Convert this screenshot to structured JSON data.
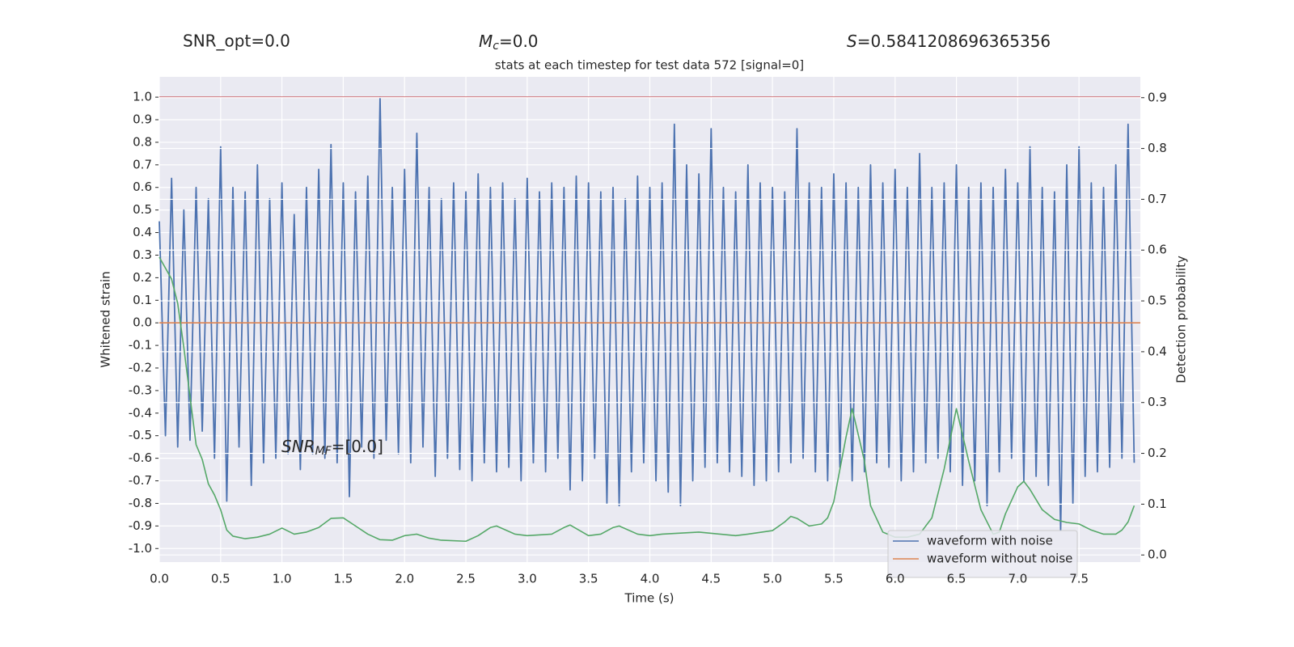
{
  "chart_data": {
    "type": "line",
    "title": "stats at each timestep for test data 572 [signal=0]",
    "x_label": "Time (s)",
    "y_label": "Whitened strain",
    "y2_label": "Detection probability",
    "annotations": [
      {
        "text": "SNR_opt=0.0"
      },
      {
        "symbol": "M",
        "sub": "c",
        "text": "=0.0"
      },
      {
        "symbol": "S",
        "text": "=0.5841208696365356"
      },
      {
        "symbol": "SNR",
        "sub": "MF",
        "text": "=[0.0]"
      }
    ],
    "xlim": [
      0,
      8.0
    ],
    "ylim": [
      -1.06,
      1.09
    ],
    "y2lim": [
      -0.014,
      0.941
    ],
    "grid": true,
    "background": "#eaeaf2",
    "legend_position": "lower right",
    "hline": {
      "value": 1.0,
      "color": "#c44e52"
    },
    "xticks": [
      {
        "value": 0,
        "label": "0.0"
      },
      {
        "value": 0.5,
        "label": "0.5"
      },
      {
        "value": 1,
        "label": "1.0"
      },
      {
        "value": 1.5,
        "label": "1.5"
      },
      {
        "value": 2,
        "label": "2.0"
      },
      {
        "value": 2.5,
        "label": "2.5"
      },
      {
        "value": 3,
        "label": "3.0"
      },
      {
        "value": 3.5,
        "label": "3.5"
      },
      {
        "value": 4,
        "label": "4.0"
      },
      {
        "value": 4.5,
        "label": "4.5"
      },
      {
        "value": 5,
        "label": "5.0"
      },
      {
        "value": 5.5,
        "label": "5.5"
      },
      {
        "value": 6,
        "label": "6.0"
      },
      {
        "value": 6.5,
        "label": "6.5"
      },
      {
        "value": 7,
        "label": "7.0"
      },
      {
        "value": 7.5,
        "label": "7.5"
      }
    ],
    "yticks": [
      {
        "value": -1,
        "label": "-1.0"
      },
      {
        "value": -0.9,
        "label": "-0.9"
      },
      {
        "value": -0.8,
        "label": "-0.8"
      },
      {
        "value": -0.7,
        "label": "-0.7"
      },
      {
        "value": -0.6,
        "label": "-0.6"
      },
      {
        "value": -0.5,
        "label": "-0.5"
      },
      {
        "value": -0.4,
        "label": "-0.4"
      },
      {
        "value": -0.3,
        "label": "-0.3"
      },
      {
        "value": -0.2,
        "label": "-0.2"
      },
      {
        "value": -0.1,
        "label": "-0.1"
      },
      {
        "value": 0,
        "label": "0.0"
      },
      {
        "value": 0.1,
        "label": "0.1"
      },
      {
        "value": 0.2,
        "label": "0.2"
      },
      {
        "value": 0.3,
        "label": "0.3"
      },
      {
        "value": 0.4,
        "label": "0.4"
      },
      {
        "value": 0.5,
        "label": "0.5"
      },
      {
        "value": 0.6,
        "label": "0.6"
      },
      {
        "value": 0.7,
        "label": "0.7"
      },
      {
        "value": 0.8,
        "label": "0.8"
      },
      {
        "value": 0.9,
        "label": "0.9"
      },
      {
        "value": 1,
        "label": "1.0"
      }
    ],
    "y2ticks": [
      {
        "value": 0,
        "label": "0.0"
      },
      {
        "value": 0.1,
        "label": "0.1"
      },
      {
        "value": 0.2,
        "label": "0.2"
      },
      {
        "value": 0.3,
        "label": "0.3"
      },
      {
        "value": 0.4,
        "label": "0.4"
      },
      {
        "value": 0.5,
        "label": "0.5"
      },
      {
        "value": 0.6,
        "label": "0.6"
      },
      {
        "value": 0.7,
        "label": "0.7"
      },
      {
        "value": 0.8,
        "label": "0.8"
      },
      {
        "value": 0.9,
        "label": "0.9"
      }
    ],
    "series": [
      {
        "name": "waveform with noise",
        "color": "#4c72b0",
        "x": [
          0,
          0.05,
          0.1,
          0.15,
          0.2,
          0.25,
          0.3,
          0.35,
          0.4,
          0.45,
          0.5,
          0.55,
          0.6,
          0.65,
          0.7,
          0.75,
          0.8,
          0.85,
          0.9,
          0.95,
          1,
          1.05,
          1.1,
          1.15,
          1.2,
          1.25,
          1.3,
          1.35,
          1.4,
          1.45,
          1.5,
          1.55,
          1.6,
          1.65,
          1.7,
          1.75,
          1.8,
          1.85,
          1.9,
          1.95,
          2,
          2.05,
          2.1,
          2.15,
          2.2,
          2.25,
          2.3,
          2.35,
          2.4,
          2.45,
          2.5,
          2.55,
          2.6,
          2.65,
          2.7,
          2.75,
          2.8,
          2.85,
          2.9,
          2.95,
          3,
          3.05,
          3.1,
          3.15,
          3.2,
          3.25,
          3.3,
          3.35,
          3.4,
          3.45,
          3.5,
          3.55,
          3.6,
          3.65,
          3.7,
          3.75,
          3.8,
          3.85,
          3.9,
          3.95,
          4,
          4.05,
          4.1,
          4.15,
          4.2,
          4.25,
          4.3,
          4.35,
          4.4,
          4.45,
          4.5,
          4.55,
          4.6,
          4.65,
          4.7,
          4.75,
          4.8,
          4.85,
          4.9,
          4.95,
          5,
          5.05,
          5.1,
          5.15,
          5.2,
          5.25,
          5.3,
          5.35,
          5.4,
          5.45,
          5.5,
          5.55,
          5.6,
          5.65,
          5.7,
          5.75,
          5.8,
          5.85,
          5.9,
          5.95,
          6,
          6.05,
          6.1,
          6.15,
          6.2,
          6.25,
          6.3,
          6.35,
          6.4,
          6.45,
          6.5,
          6.55,
          6.6,
          6.65,
          6.7,
          6.75,
          6.8,
          6.85,
          6.9,
          6.95,
          7,
          7.05,
          7.1,
          7.15,
          7.2,
          7.25,
          7.3,
          7.35,
          7.4,
          7.45,
          7.5,
          7.55,
          7.6,
          7.65,
          7.7,
          7.75,
          7.8,
          7.85,
          7.9,
          7.95
        ],
        "values": [
          0.45,
          -0.5,
          0.64,
          -0.55,
          0.5,
          -0.52,
          0.6,
          -0.48,
          0.55,
          -0.6,
          0.78,
          -0.79,
          0.6,
          -0.55,
          0.58,
          -0.72,
          0.7,
          -0.62,
          0.55,
          -0.6,
          0.62,
          -0.58,
          0.48,
          -0.65,
          0.6,
          -0.58,
          0.68,
          -0.6,
          0.79,
          -0.62,
          0.62,
          -0.77,
          0.58,
          -0.55,
          0.65,
          -0.6,
          1.0,
          -0.52,
          0.6,
          -0.58,
          0.68,
          -0.62,
          0.84,
          -0.55,
          0.6,
          -0.68,
          0.55,
          -0.6,
          0.62,
          -0.65,
          0.58,
          -0.7,
          0.66,
          -0.62,
          0.6,
          -0.66,
          0.62,
          -0.64,
          0.55,
          -0.7,
          0.64,
          -0.62,
          0.58,
          -0.66,
          0.62,
          -0.6,
          0.6,
          -0.74,
          0.65,
          -0.7,
          0.62,
          -0.6,
          0.58,
          -0.8,
          0.6,
          -0.81,
          0.55,
          -0.66,
          0.65,
          -0.62,
          0.6,
          -0.7,
          0.62,
          -0.75,
          0.88,
          -0.81,
          0.7,
          -0.7,
          0.66,
          -0.64,
          0.86,
          -0.62,
          0.6,
          -0.66,
          0.58,
          -0.68,
          0.7,
          -0.72,
          0.62,
          -0.7,
          0.6,
          -0.66,
          0.58,
          -0.62,
          0.86,
          -0.6,
          0.62,
          -0.66,
          0.6,
          -0.7,
          0.66,
          -0.64,
          0.62,
          -0.7,
          0.6,
          -0.66,
          0.7,
          -0.62,
          0.62,
          -0.64,
          0.68,
          -0.7,
          0.6,
          -0.66,
          0.75,
          -0.62,
          0.6,
          -0.6,
          0.62,
          -0.66,
          0.7,
          -0.72,
          0.6,
          -0.7,
          0.62,
          -0.81,
          0.6,
          -0.66,
          0.68,
          -0.6,
          0.62,
          -0.7,
          0.78,
          -0.68,
          0.6,
          -0.72,
          0.58,
          -0.92,
          0.7,
          -0.8,
          0.78,
          -0.68,
          0.62,
          -0.66,
          0.6,
          -0.64,
          0.7,
          -0.6,
          0.88,
          -0.62
        ]
      },
      {
        "name": "waveform without noise",
        "color": "#dd8452",
        "x": [
          0,
          8.0
        ],
        "values": [
          0,
          0
        ]
      },
      {
        "color": "#55a868",
        "axis": "y2",
        "x": [
          0,
          0.1,
          0.15,
          0.2,
          0.25,
          0.3,
          0.35,
          0.4,
          0.45,
          0.5,
          0.55,
          0.6,
          0.7,
          0.8,
          0.9,
          1.0,
          1.1,
          1.2,
          1.3,
          1.4,
          1.5,
          1.6,
          1.7,
          1.8,
          1.9,
          2.0,
          2.1,
          2.2,
          2.3,
          2.5,
          2.6,
          2.7,
          2.75,
          2.9,
          3.0,
          3.2,
          3.3,
          3.35,
          3.5,
          3.6,
          3.7,
          3.75,
          3.9,
          4.0,
          4.1,
          4.4,
          4.7,
          4.8,
          5.0,
          5.1,
          5.15,
          5.2,
          5.3,
          5.4,
          5.45,
          5.5,
          5.6,
          5.65,
          5.75,
          5.8,
          5.9,
          6.0,
          6.1,
          6.2,
          6.3,
          6.4,
          6.5,
          6.6,
          6.7,
          6.8,
          6.85,
          6.9,
          7.0,
          7.05,
          7.1,
          7.2,
          7.3,
          7.4,
          7.5,
          7.6,
          7.7,
          7.8,
          7.85,
          7.9,
          7.95
        ],
        "values": [
          0.586,
          0.543,
          0.495,
          0.408,
          0.312,
          0.217,
          0.188,
          0.14,
          0.118,
          0.089,
          0.049,
          0.037,
          0.032,
          0.035,
          0.041,
          0.053,
          0.041,
          0.045,
          0.054,
          0.072,
          0.073,
          0.057,
          0.041,
          0.03,
          0.029,
          0.038,
          0.041,
          0.033,
          0.029,
          0.027,
          0.038,
          0.054,
          0.057,
          0.041,
          0.038,
          0.041,
          0.054,
          0.059,
          0.038,
          0.041,
          0.054,
          0.057,
          0.041,
          0.038,
          0.041,
          0.045,
          0.038,
          0.041,
          0.048,
          0.065,
          0.076,
          0.072,
          0.057,
          0.061,
          0.073,
          0.105,
          0.232,
          0.288,
          0.185,
          0.097,
          0.045,
          0.035,
          0.035,
          0.041,
          0.073,
          0.169,
          0.288,
          0.185,
          0.089,
          0.041,
          0.045,
          0.081,
          0.134,
          0.145,
          0.129,
          0.089,
          0.07,
          0.064,
          0.061,
          0.049,
          0.041,
          0.041,
          0.049,
          0.065,
          0.097
        ]
      }
    ]
  }
}
